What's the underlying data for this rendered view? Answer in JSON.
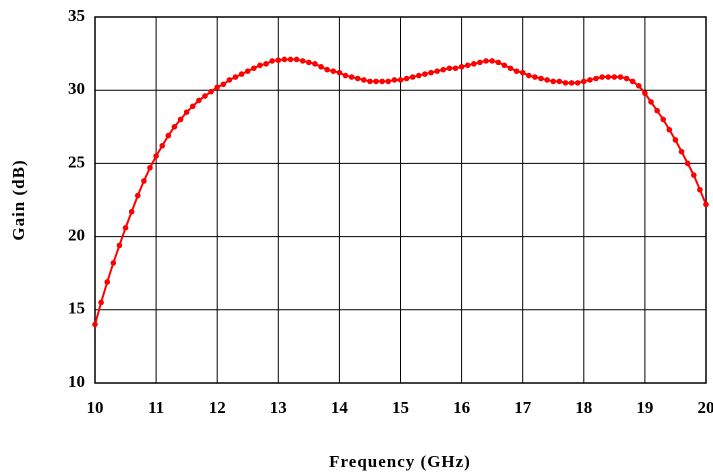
{
  "chart_data": {
    "type": "line",
    "xlabel": "Frequency (GHz)",
    "ylabel": "Gain (dB)",
    "x": [
      10.0,
      10.1,
      10.2,
      10.3,
      10.4,
      10.5,
      10.6,
      10.7,
      10.8,
      10.9,
      11.0,
      11.1,
      11.2,
      11.3,
      11.4,
      11.5,
      11.6,
      11.7,
      11.8,
      11.9,
      12.0,
      12.1,
      12.2,
      12.3,
      12.4,
      12.5,
      12.6,
      12.7,
      12.8,
      12.9,
      13.0,
      13.1,
      13.2,
      13.3,
      13.4,
      13.5,
      13.6,
      13.7,
      13.8,
      13.9,
      14.0,
      14.1,
      14.2,
      14.3,
      14.4,
      14.5,
      14.6,
      14.7,
      14.8,
      14.9,
      15.0,
      15.1,
      15.2,
      15.3,
      15.4,
      15.5,
      15.6,
      15.7,
      15.8,
      15.9,
      16.0,
      16.1,
      16.2,
      16.3,
      16.4,
      16.5,
      16.6,
      16.7,
      16.8,
      16.9,
      17.0,
      17.1,
      17.2,
      17.3,
      17.4,
      17.5,
      17.6,
      17.7,
      17.8,
      17.9,
      18.0,
      18.1,
      18.2,
      18.3,
      18.4,
      18.5,
      18.6,
      18.7,
      18.8,
      18.9,
      19.0,
      19.1,
      19.2,
      19.3,
      19.4,
      19.5,
      19.6,
      19.7,
      19.8,
      19.9,
      20.0
    ],
    "values": [
      14.0,
      15.5,
      16.9,
      18.2,
      19.4,
      20.6,
      21.7,
      22.8,
      23.8,
      24.7,
      25.5,
      26.2,
      26.9,
      27.5,
      28.0,
      28.5,
      28.9,
      29.3,
      29.6,
      29.9,
      30.2,
      30.4,
      30.7,
      30.9,
      31.1,
      31.3,
      31.5,
      31.7,
      31.8,
      32.0,
      32.05,
      32.1,
      32.1,
      32.1,
      32.0,
      31.9,
      31.8,
      31.6,
      31.4,
      31.3,
      31.2,
      31.0,
      30.9,
      30.8,
      30.7,
      30.6,
      30.6,
      30.6,
      30.6,
      30.7,
      30.7,
      30.8,
      30.9,
      31.0,
      31.1,
      31.2,
      31.3,
      31.4,
      31.5,
      31.5,
      31.6,
      31.7,
      31.8,
      31.9,
      32.0,
      32.0,
      31.9,
      31.7,
      31.5,
      31.3,
      31.2,
      31.0,
      30.9,
      30.8,
      30.7,
      30.6,
      30.6,
      30.5,
      30.5,
      30.5,
      30.6,
      30.7,
      30.8,
      30.9,
      30.9,
      30.9,
      30.9,
      30.8,
      30.6,
      30.3,
      29.8,
      29.2,
      28.6,
      28.0,
      27.3,
      26.6,
      25.8,
      25.0,
      24.2,
      23.2,
      22.2
    ],
    "color": "#ff0000",
    "xlim": [
      10,
      20
    ],
    "xticks": [
      10,
      11,
      12,
      13,
      14,
      15,
      16,
      17,
      18,
      19,
      20
    ],
    "ylim": [
      10,
      35
    ],
    "yticks": [
      10,
      15,
      20,
      25,
      30,
      35
    ],
    "grid": true
  }
}
